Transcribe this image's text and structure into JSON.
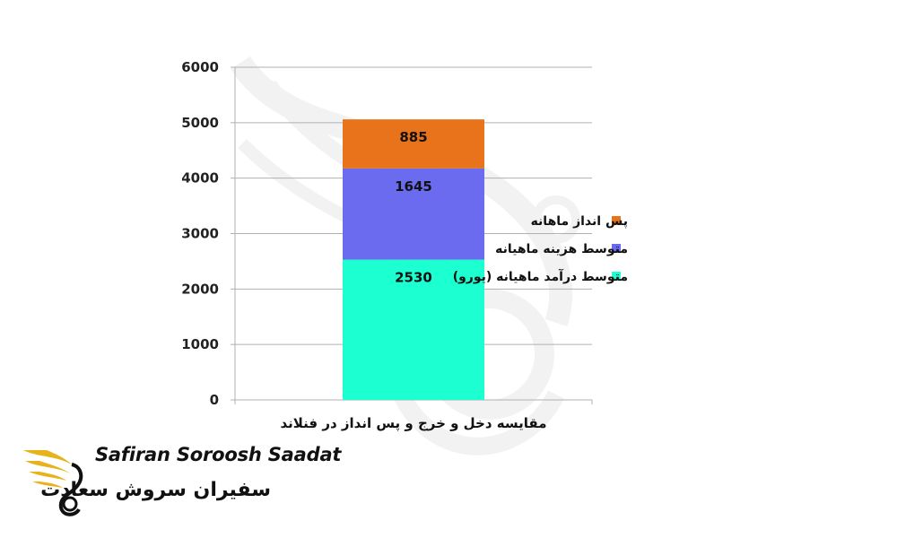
{
  "chart_data": {
    "type": "bar",
    "stacked": true,
    "categories": [
      "مقایسه دخل و خرج و پس انداز در فنلاند"
    ],
    "series": [
      {
        "name": "متوسط درآمد ماهیانه (یورو)",
        "values": [
          2530
        ],
        "color": "#1CFFD0"
      },
      {
        "name": "متوسط هزینه ماهیانه",
        "values": [
          1645
        ],
        "color": "#6B6BEF"
      },
      {
        "name": "پس انداز ماهانه",
        "values": [
          885
        ],
        "color": "#E8731A"
      }
    ],
    "ylim": [
      0,
      6000
    ],
    "yticks": [
      0,
      1000,
      2000,
      3000,
      4000,
      5000,
      6000
    ],
    "grid": true,
    "legend_position": "right",
    "legend_order": [
      "پس انداز ماهانه",
      "متوسط هزینه ماهیانه",
      "متوسط درآمد ماهیانه (یورو)"
    ]
  },
  "branding": {
    "name_en": "Safiran Soroosh Saadat",
    "name_fa": "سفیران سروش سعادت",
    "logo_icon": "wing-swirl-icon",
    "colors": {
      "gold": "#E8B21A",
      "dark": "#111111"
    }
  }
}
